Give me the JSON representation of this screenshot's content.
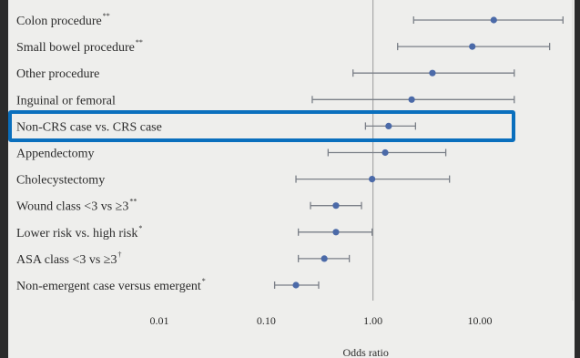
{
  "chart_data": {
    "type": "forest",
    "xlabel": "Odds ratio",
    "xscale": "log",
    "xlim": [
      0.005,
      60
    ],
    "xticks": [
      0.01,
      0.1,
      1.0,
      10.0
    ],
    "xtick_labels": [
      "0.01",
      "0.10",
      "1.00",
      "10.00"
    ],
    "reference_line": 1.0,
    "highlighted_row": "Non-CRS case vs. CRS case",
    "rows": [
      {
        "label": "Colon procedure",
        "sup": "**",
        "or": 13.5,
        "lo": 2.4,
        "hi": 60
      },
      {
        "label": "Small bowel procedure",
        "sup": "**",
        "or": 8.5,
        "lo": 1.7,
        "hi": 45
      },
      {
        "label": "Other procedure",
        "sup": "",
        "or": 3.6,
        "lo": 0.65,
        "hi": 21
      },
      {
        "label": "Inguinal or femoral",
        "sup": "",
        "or": 2.3,
        "lo": 0.27,
        "hi": 21
      },
      {
        "label": "Non-CRS case vs. CRS case",
        "sup": "",
        "or": 1.4,
        "lo": 0.85,
        "hi": 2.5
      },
      {
        "label": "Appendectomy",
        "sup": "",
        "or": 1.3,
        "lo": 0.38,
        "hi": 4.8
      },
      {
        "label": "Cholecystectomy",
        "sup": "",
        "or": 0.98,
        "lo": 0.19,
        "hi": 5.2
      },
      {
        "label": "Wound class <3 vs ≥3",
        "sup": "**",
        "or": 0.45,
        "lo": 0.26,
        "hi": 0.78
      },
      {
        "label": "Lower risk vs. high risk",
        "sup": "*",
        "or": 0.45,
        "lo": 0.2,
        "hi": 0.98
      },
      {
        "label": "ASA class <3 vs ≥3",
        "sup": "†",
        "or": 0.35,
        "lo": 0.2,
        "hi": 0.6
      },
      {
        "label": "Non-emergent case versus emergent",
        "sup": "*",
        "or": 0.19,
        "lo": 0.12,
        "hi": 0.31
      }
    ],
    "colors": {
      "point": "#4b6aa8",
      "ci_line": "#7a7f87",
      "highlight": "#0a6fbd",
      "background": "#eeeeec"
    }
  }
}
